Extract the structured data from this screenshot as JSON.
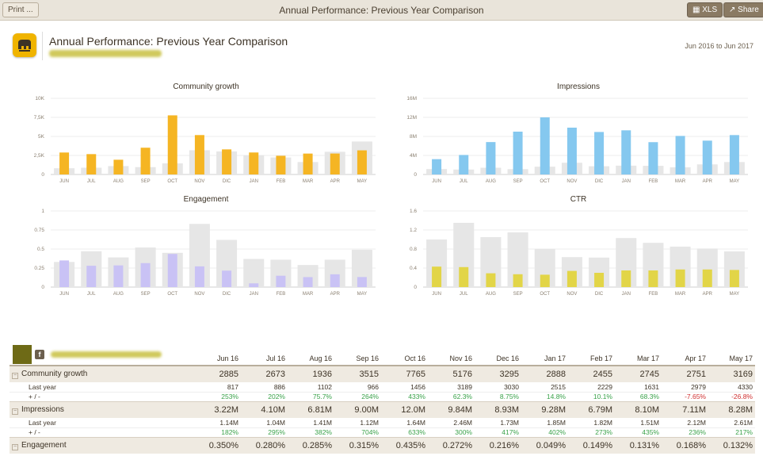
{
  "toolbar": {
    "print_label": "Print ...",
    "xls_label": "XLS",
    "share_label": "Share",
    "window_title": "Annual Performance: Previous Year Comparison"
  },
  "header": {
    "title": "Annual Performance: Previous Year Comparison",
    "date_range": "Jun 2016 to Jun 2017"
  },
  "colors": {
    "community": "#f5b523",
    "impressions": "#85c8ef",
    "engagement": "#c9c2f5",
    "ctr": "#e2d547",
    "prev": "#e6e6e6",
    "positive": "#3aa24a",
    "negative": "#d03030"
  },
  "chart_data": [
    {
      "type": "bar",
      "title": "Community growth",
      "categories": [
        "JUN",
        "JUL",
        "AUG",
        "SEP",
        "OCT",
        "NOV",
        "DIC",
        "JAN",
        "FEB",
        "MAR",
        "APR",
        "MAY"
      ],
      "yticks": [
        "0",
        "2,5K",
        "5K",
        "7,5K",
        "10K"
      ],
      "ylim": [
        0,
        10000
      ],
      "series": [
        {
          "name": "Last year",
          "values": [
            817,
            886,
            1102,
            966,
            1456,
            3189,
            3030,
            2515,
            2229,
            1631,
            2979,
            4330
          ]
        },
        {
          "name": "This year",
          "values": [
            2885,
            2673,
            1936,
            3515,
            7765,
            5176,
            3295,
            2888,
            2455,
            2745,
            2751,
            3169
          ]
        }
      ]
    },
    {
      "type": "bar",
      "title": "Impressions",
      "categories": [
        "JUN",
        "JUL",
        "AUG",
        "SEP",
        "OCT",
        "NOV",
        "DIC",
        "JAN",
        "FEB",
        "MAR",
        "APR",
        "MAY"
      ],
      "yticks": [
        "0",
        "4M",
        "8M",
        "12M",
        "16M"
      ],
      "ylim": [
        0,
        16000000
      ],
      "series": [
        {
          "name": "Last year",
          "values": [
            1140000,
            1040000,
            1410000,
            1120000,
            1640000,
            2460000,
            1730000,
            1850000,
            1820000,
            1510000,
            2120000,
            2610000
          ]
        },
        {
          "name": "This year",
          "values": [
            3220000,
            4100000,
            6810000,
            9000000,
            12000000,
            9840000,
            8930000,
            9280000,
            6790000,
            8100000,
            7110000,
            8280000
          ]
        }
      ]
    },
    {
      "type": "bar",
      "title": "Engagement",
      "categories": [
        "JUN",
        "JUL",
        "AUG",
        "SEP",
        "OCT",
        "NOV",
        "DIC",
        "JAN",
        "FEB",
        "MAR",
        "APR",
        "MAY"
      ],
      "yticks": [
        "0",
        "0.25",
        "0.5",
        "0.75",
        "1"
      ],
      "ylim": [
        0,
        1
      ],
      "series": [
        {
          "name": "Last year",
          "values": [
            0.33,
            0.47,
            0.39,
            0.52,
            0.45,
            0.83,
            0.62,
            0.37,
            0.36,
            0.29,
            0.36,
            0.49
          ]
        },
        {
          "name": "This year",
          "values": [
            0.35,
            0.28,
            0.285,
            0.315,
            0.435,
            0.272,
            0.216,
            0.049,
            0.149,
            0.131,
            0.168,
            0.132
          ]
        }
      ]
    },
    {
      "type": "bar",
      "title": "CTR",
      "categories": [
        "JUN",
        "JUL",
        "AUG",
        "SEP",
        "OCT",
        "NOV",
        "DIC",
        "JAN",
        "FEB",
        "MAR",
        "APR",
        "MAY"
      ],
      "yticks": [
        "0",
        "0.4",
        "0.8",
        "1.2",
        "1.6"
      ],
      "ylim": [
        0,
        1.6
      ],
      "series": [
        {
          "name": "Last year",
          "values": [
            1.0,
            1.35,
            1.05,
            1.15,
            0.8,
            0.63,
            0.62,
            1.03,
            0.93,
            0.85,
            0.81,
            0.75
          ]
        },
        {
          "name": "This year",
          "values": [
            0.43,
            0.42,
            0.29,
            0.27,
            0.26,
            0.34,
            0.3,
            0.35,
            0.35,
            0.37,
            0.37,
            0.36
          ]
        }
      ]
    }
  ],
  "table": {
    "months": [
      "Jun 16",
      "Jul 16",
      "Aug 16",
      "Sep 16",
      "Oct 16",
      "Nov 16",
      "Dec 16",
      "Jan 17",
      "Feb 17",
      "Mar 17",
      "Apr 17",
      "May 17"
    ],
    "last_year_label": "Last year",
    "delta_label": "+ / -",
    "metrics": [
      {
        "name": "Community growth",
        "values": [
          "2885",
          "2673",
          "1936",
          "3515",
          "7765",
          "5176",
          "3295",
          "2888",
          "2455",
          "2745",
          "2751",
          "3169"
        ],
        "last_year": [
          "817",
          "886",
          "1102",
          "966",
          "1456",
          "3189",
          "3030",
          "2515",
          "2229",
          "1631",
          "2979",
          "4330"
        ],
        "delta": [
          "253%",
          "202%",
          "75.7%",
          "264%",
          "433%",
          "62.3%",
          "8.75%",
          "14.8%",
          "10.1%",
          "68.3%",
          "-7.65%",
          "-26.8%"
        ]
      },
      {
        "name": "Impressions",
        "values": [
          "3.22M",
          "4.10M",
          "6.81M",
          "9.00M",
          "12.0M",
          "9.84M",
          "8.93M",
          "9.28M",
          "6.79M",
          "8.10M",
          "7.11M",
          "8.28M"
        ],
        "last_year": [
          "1.14M",
          "1.04M",
          "1.41M",
          "1.12M",
          "1.64M",
          "2.46M",
          "1.73M",
          "1.85M",
          "1.82M",
          "1.51M",
          "2.12M",
          "2.61M"
        ],
        "delta": [
          "182%",
          "295%",
          "382%",
          "704%",
          "633%",
          "300%",
          "417%",
          "402%",
          "273%",
          "435%",
          "236%",
          "217%"
        ]
      },
      {
        "name": "Engagement",
        "values": [
          "0.350%",
          "0.280%",
          "0.285%",
          "0.315%",
          "0.435%",
          "0.272%",
          "0.216%",
          "0.049%",
          "0.149%",
          "0.131%",
          "0.168%",
          "0.132%"
        ]
      }
    ]
  }
}
